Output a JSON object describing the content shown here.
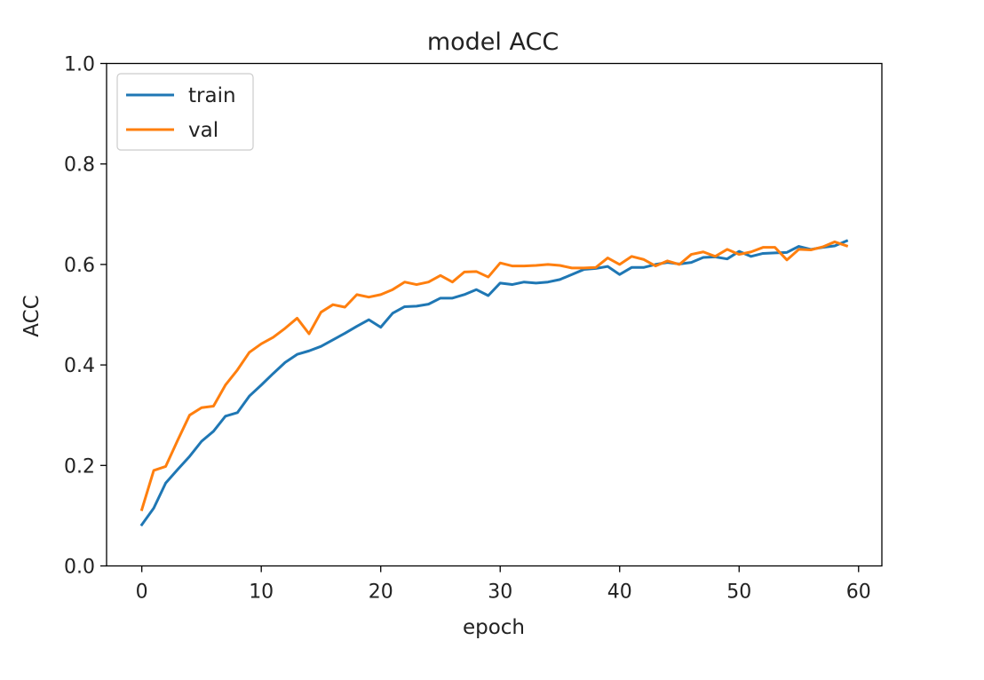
{
  "chart_data": {
    "type": "line",
    "title": "model ACC",
    "xlabel": "epoch",
    "ylabel": "ACC",
    "xlim": [
      -2.95,
      61.95
    ],
    "ylim": [
      0.0,
      1.0
    ],
    "xticks": [
      0,
      10,
      20,
      30,
      40,
      50,
      60
    ],
    "yticks": [
      0.0,
      0.2,
      0.4,
      0.6,
      0.8,
      1.0
    ],
    "xtick_labels": [
      "0",
      "10",
      "20",
      "30",
      "40",
      "50",
      "60"
    ],
    "ytick_labels": [
      "0.0",
      "0.2",
      "0.4",
      "0.6",
      "0.8",
      "1.0"
    ],
    "grid": false,
    "legend_position": "top-left",
    "x": [
      0,
      1,
      2,
      3,
      4,
      5,
      6,
      7,
      8,
      9,
      10,
      11,
      12,
      13,
      14,
      15,
      16,
      17,
      18,
      19,
      20,
      21,
      22,
      23,
      24,
      25,
      26,
      27,
      28,
      29,
      30,
      31,
      32,
      33,
      34,
      35,
      36,
      37,
      38,
      39,
      40,
      41,
      42,
      43,
      44,
      45,
      46,
      47,
      48,
      49,
      50,
      51,
      52,
      53,
      54,
      55,
      56,
      57,
      58,
      59
    ],
    "series": [
      {
        "name": "train",
        "color": "#1f77b4",
        "values": [
          0.082,
          0.115,
          0.165,
          0.192,
          0.218,
          0.248,
          0.268,
          0.298,
          0.305,
          0.338,
          0.36,
          0.383,
          0.405,
          0.421,
          0.428,
          0.437,
          0.45,
          0.463,
          0.477,
          0.49,
          0.475,
          0.503,
          0.516,
          0.517,
          0.521,
          0.533,
          0.533,
          0.54,
          0.55,
          0.538,
          0.563,
          0.56,
          0.565,
          0.563,
          0.565,
          0.57,
          0.58,
          0.59,
          0.592,
          0.596,
          0.58,
          0.594,
          0.594,
          0.6,
          0.604,
          0.601,
          0.604,
          0.614,
          0.615,
          0.611,
          0.626,
          0.616,
          0.622,
          0.623,
          0.624,
          0.636,
          0.63,
          0.634,
          0.637,
          0.647
        ]
      },
      {
        "name": "val",
        "color": "#ff7f0e",
        "values": [
          0.112,
          0.19,
          0.198,
          0.25,
          0.3,
          0.315,
          0.318,
          0.36,
          0.39,
          0.425,
          0.442,
          0.455,
          0.473,
          0.493,
          0.462,
          0.505,
          0.52,
          0.515,
          0.54,
          0.535,
          0.54,
          0.55,
          0.565,
          0.56,
          0.565,
          0.578,
          0.565,
          0.585,
          0.586,
          0.575,
          0.603,
          0.597,
          0.597,
          0.598,
          0.6,
          0.598,
          0.593,
          0.593,
          0.594,
          0.613,
          0.6,
          0.616,
          0.61,
          0.597,
          0.607,
          0.6,
          0.62,
          0.625,
          0.616,
          0.63,
          0.62,
          0.625,
          0.634,
          0.634,
          0.609,
          0.63,
          0.629,
          0.635,
          0.645,
          0.637
        ]
      }
    ]
  }
}
